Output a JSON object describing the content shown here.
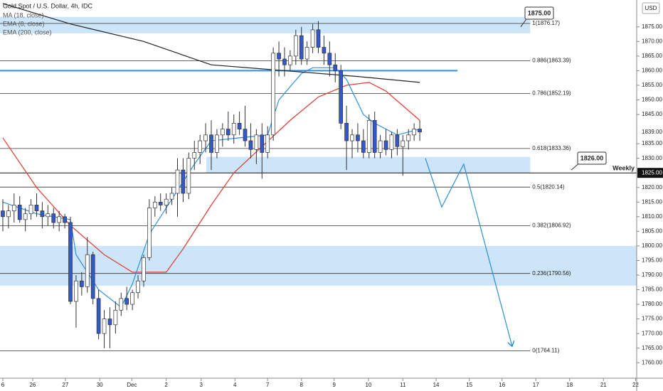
{
  "chart_data": {
    "type": "candlestick",
    "title": "Gold Spot / U.S. Dollar, 4h, IDC",
    "currency": "USD",
    "xlim": [
      -0.5,
      112.5
    ],
    "ylim": [
      1754.7,
      1884.2
    ],
    "yticks": [
      {
        "value": 1760,
        "label": "1760.00"
      },
      {
        "value": 1765,
        "label": "1765.00"
      },
      {
        "value": 1770,
        "label": "1770.00"
      },
      {
        "value": 1775,
        "label": "1775.00"
      },
      {
        "value": 1780,
        "label": "1780.00"
      },
      {
        "value": 1785,
        "label": "1785.00"
      },
      {
        "value": 1790,
        "label": "1790.00"
      },
      {
        "value": 1795,
        "label": "1795.00"
      },
      {
        "value": 1800,
        "label": "1800.00"
      },
      {
        "value": 1805,
        "label": "1805.00"
      },
      {
        "value": 1810,
        "label": "1810.00"
      },
      {
        "value": 1815,
        "label": "1815.00"
      },
      {
        "value": 1820,
        "label": "1820.00"
      },
      {
        "value": 1830,
        "label": "1830.00"
      },
      {
        "value": 1835,
        "label": "1835.00"
      },
      {
        "value": 1845,
        "label": "1845.00"
      },
      {
        "value": 1850,
        "label": "1850.00"
      },
      {
        "value": 1855,
        "label": "1855.00"
      },
      {
        "value": 1860,
        "label": "1860.00"
      },
      {
        "value": 1865,
        "label": "1865.00"
      },
      {
        "value": 1870,
        "label": "1870.00"
      },
      {
        "value": 1875,
        "label": "1875.00"
      }
    ],
    "xticks": [
      {
        "value": 0,
        "label": "6"
      },
      {
        "value": 5.3,
        "label": "26"
      },
      {
        "value": 11.1,
        "label": "27"
      },
      {
        "value": 17.2,
        "label": "30"
      },
      {
        "value": 22.9,
        "label": "Dec"
      },
      {
        "value": 29,
        "label": "2"
      },
      {
        "value": 35.2,
        "label": "3"
      },
      {
        "value": 41.2,
        "label": "4"
      },
      {
        "value": 47,
        "label": "7"
      },
      {
        "value": 53,
        "label": "8"
      },
      {
        "value": 58.8,
        "label": "9"
      },
      {
        "value": 64.9,
        "label": "10"
      },
      {
        "value": 71,
        "label": "11"
      },
      {
        "value": 76.9,
        "label": "14"
      },
      {
        "value": 82.8,
        "label": "15"
      },
      {
        "value": 88.6,
        "label": "16"
      },
      {
        "value": 94.6,
        "label": "17"
      },
      {
        "value": 100.6,
        "label": "18"
      },
      {
        "value": 106.6,
        "label": "21"
      },
      {
        "value": 112.3,
        "label": "22"
      }
    ],
    "up_color": "#ffffff",
    "down_color": "#3558c8",
    "open": [
      1812,
      1810,
      1812,
      1814,
      1809,
      1811,
      1814,
      1812,
      1810,
      1811,
      1808,
      1810,
      1808,
      1781,
      1788,
      1786,
      1797,
      1782,
      1770,
      1775,
      1773,
      1778,
      1782,
      1780,
      1784,
      1788,
      1796,
      1813,
      1815,
      1814,
      1816,
      1818,
      1826,
      1818,
      1830,
      1832,
      1836,
      1838,
      1832,
      1838,
      1840,
      1838,
      1842,
      1840,
      1836,
      1833,
      1838,
      1832,
      1838,
      1866,
      1864,
      1862,
      1865,
      1872,
      1864,
      1868,
      1874,
      1868,
      1866,
      1862,
      1860,
      1842,
      1836,
      1838,
      1836,
      1832,
      1843,
      1832,
      1836,
      1833,
      1838,
      1834,
      1836,
      1838,
      1840
    ],
    "high": [
      1816,
      1814,
      1818,
      1817,
      1813,
      1816,
      1818,
      1815,
      1814,
      1813,
      1812,
      1811,
      1810,
      1790,
      1791,
      1803,
      1798,
      1785,
      1778,
      1779,
      1781,
      1784,
      1786,
      1785,
      1790,
      1797,
      1816,
      1817,
      1818,
      1818,
      1820,
      1830,
      1830,
      1832,
      1836,
      1838,
      1842,
      1843,
      1840,
      1842,
      1846,
      1845,
      1846,
      1848,
      1842,
      1840,
      1842,
      1841,
      1868,
      1870,
      1868,
      1867,
      1874,
      1875,
      1870,
      1876,
      1877,
      1872,
      1870,
      1866,
      1862,
      1848,
      1840,
      1842,
      1840,
      1845,
      1846,
      1838,
      1840,
      1839,
      1840,
      1838,
      1840,
      1842,
      1843
    ],
    "low": [
      1805,
      1806,
      1808,
      1808,
      1805,
      1809,
      1810,
      1806,
      1807,
      1806,
      1805,
      1806,
      1780,
      1772,
      1783,
      1784,
      1780,
      1768,
      1765,
      1765,
      1770,
      1776,
      1778,
      1778,
      1782,
      1786,
      1795,
      1810,
      1812,
      1811,
      1814,
      1810,
      1815,
      1816,
      1826,
      1828,
      1832,
      1826,
      1830,
      1834,
      1836,
      1835,
      1838,
      1834,
      1830,
      1828,
      1823,
      1830,
      1836,
      1858,
      1858,
      1860,
      1862,
      1862,
      1862,
      1866,
      1866,
      1862,
      1858,
      1856,
      1840,
      1826,
      1830,
      1832,
      1830,
      1830,
      1830,
      1830,
      1831,
      1830,
      1831,
      1824,
      1833,
      1836,
      1836
    ],
    "close": [
      1810,
      1812,
      1814,
      1809,
      1811,
      1814,
      1812,
      1810,
      1811,
      1808,
      1810,
      1808,
      1781,
      1788,
      1786,
      1797,
      1782,
      1770,
      1775,
      1773,
      1778,
      1782,
      1780,
      1784,
      1788,
      1796,
      1813,
      1815,
      1814,
      1816,
      1818,
      1826,
      1818,
      1830,
      1832,
      1836,
      1838,
      1832,
      1838,
      1840,
      1838,
      1842,
      1840,
      1836,
      1833,
      1838,
      1832,
      1838,
      1866,
      1864,
      1862,
      1865,
      1872,
      1864,
      1868,
      1874,
      1868,
      1866,
      1862,
      1860,
      1842,
      1836,
      1838,
      1836,
      1832,
      1843,
      1832,
      1836,
      1833,
      1838,
      1834,
      1836,
      1838,
      1840,
      1839
    ],
    "series": [
      {
        "name": "MA (18, close)",
        "color": "#e03a2f",
        "x": [
          0,
          6,
          12,
          18,
          23,
          29,
          32,
          37,
          41,
          46,
          51,
          56,
          61,
          65,
          68,
          74
        ],
        "values": [
          1837,
          1820,
          1807,
          1797,
          1791,
          1791,
          1799,
          1814,
          1825,
          1834,
          1843,
          1851,
          1855,
          1856,
          1853,
          1843
        ]
      },
      {
        "name": "EMA (8, close)",
        "color": "#2d8fe0",
        "x": [
          0,
          6,
          12,
          13,
          17,
          21,
          23,
          26,
          30,
          34,
          37,
          42,
          47,
          49,
          53,
          55,
          59,
          61,
          64,
          66,
          70,
          74
        ],
        "values": [
          1815,
          1811,
          1809,
          1797,
          1785,
          1779,
          1787,
          1804,
          1816,
          1828,
          1836,
          1837,
          1838,
          1850,
          1859,
          1861,
          1861,
          1857,
          1845,
          1842,
          1838,
          1840
        ]
      },
      {
        "name": "EMA (200, close)",
        "color": "#222222",
        "x": [
          0,
          12,
          25,
          37,
          50,
          63,
          74
        ],
        "values": [
          1883,
          1876,
          1870,
          1862,
          1860,
          1858,
          1856
        ]
      }
    ],
    "fib_levels": [
      {
        "value": 1876.17,
        "label": "1(1876.17)"
      },
      {
        "value": 1863.39,
        "label": "0.886(1863.39)"
      },
      {
        "value": 1852.19,
        "label": "0.786(1852.19)"
      },
      {
        "value": 1833.36,
        "label": "0.618(1833.36)"
      },
      {
        "value": 1820.14,
        "label": "0.5(1820.14)"
      },
      {
        "value": 1806.92,
        "label": "0.382(1806.92)"
      },
      {
        "value": 1790.56,
        "label": "0.236(1790.56)"
      },
      {
        "value": 1764.11,
        "label": "0(1764.11)"
      }
    ],
    "fib_x": [
      -0.5,
      93.6
    ],
    "zones": [
      {
        "x": [
          -0.5,
          93.6
        ],
        "y": [
          1872.8,
          1878.4
        ]
      },
      {
        "x": [
          36.1,
          93.6
        ],
        "y": [
          1825,
          1830.5
        ]
      },
      {
        "x": [
          -0.5,
          112.5
        ],
        "y": [
          1786.4,
          1800
        ]
      }
    ],
    "resistance": {
      "value": 1860,
      "x": [
        -0.5,
        80.7
      ],
      "color": "#2d8fe0"
    },
    "weekly": {
      "value": 1825,
      "label": "Weekly",
      "price_label": "1825.00"
    },
    "last_price": {
      "value": 1839,
      "label": "1839.00"
    },
    "callouts": [
      {
        "value": 1875,
        "label": "1875.00"
      },
      {
        "value": 1826,
        "label": "1826.00"
      }
    ],
    "projection": {
      "color": "#2b8fd6",
      "x": [
        75,
        77.9,
        81.8,
        90.4
      ],
      "values": [
        1830,
        1813.3,
        1828,
        1765.6
      ]
    }
  }
}
